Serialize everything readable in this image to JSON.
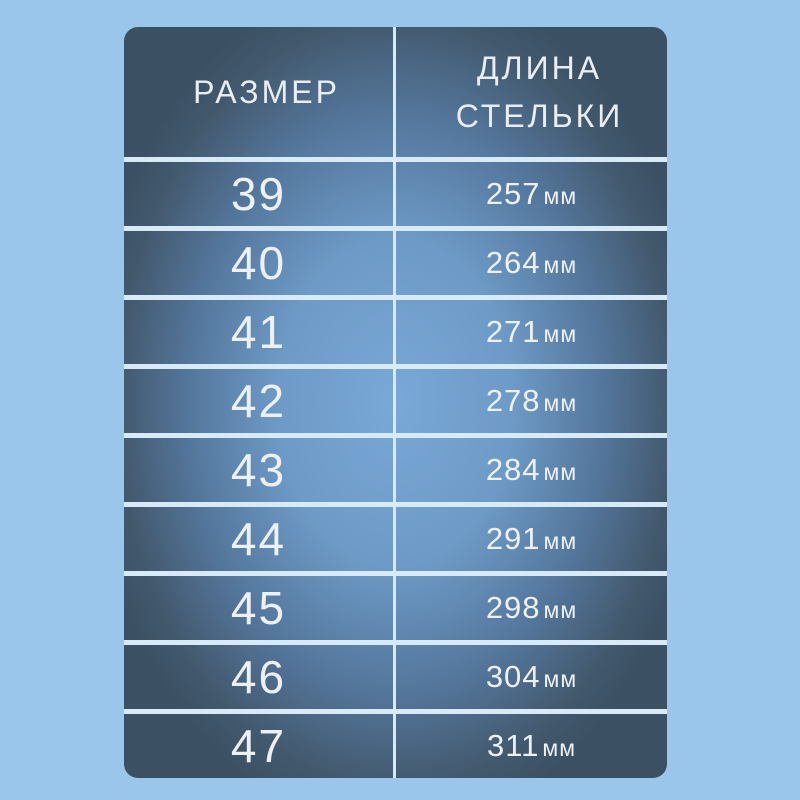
{
  "chart_data": {
    "type": "table",
    "columns": [
      "РАЗМЕР",
      "ДЛИНА СТЕЛЬКИ"
    ],
    "sizes": [
      39,
      40,
      41,
      42,
      43,
      44,
      45,
      46,
      47
    ],
    "insole_length_mm": [
      257,
      264,
      271,
      278,
      284,
      291,
      298,
      304,
      311
    ],
    "unit_label": "мм",
    "colors": {
      "page_background": "#99c6ea",
      "cell_dark": "#3b5063",
      "cell_glow_center": "#7aa8d7",
      "separator": "#d9eaf7",
      "text": "#edf1f6"
    }
  }
}
